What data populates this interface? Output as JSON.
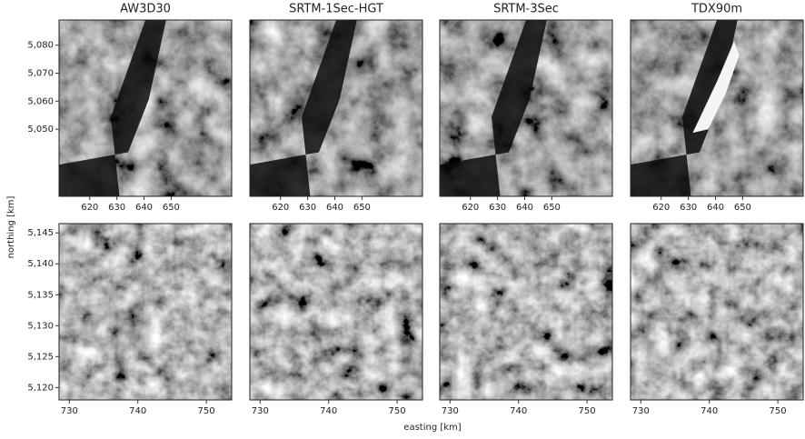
{
  "figure": {
    "xlabel": "easting [km]",
    "ylabel": "northing [km]"
  },
  "chart_data": [
    {
      "type": "image",
      "title": "AW3D30",
      "xlim": [
        608.7,
        672.3
      ],
      "xticks": [
        620,
        630,
        640,
        650
      ],
      "ylim": [
        5026,
        5089
      ],
      "yticks": [
        {
          "value": 5050,
          "label": "5,050"
        },
        {
          "value": 5060,
          "label": "5,060"
        },
        {
          "value": 5070,
          "label": "5,070"
        },
        {
          "value": 5080,
          "label": "5,080"
        }
      ]
    },
    {
      "type": "image",
      "title": "SRTM-1Sec-HGT",
      "xlim": [
        608.7,
        672.3
      ],
      "xticks": [
        620,
        630,
        640,
        650
      ]
    },
    {
      "type": "image",
      "title": "SRTM-3Sec",
      "xlim": [
        608.7,
        672.3
      ],
      "xticks": [
        620,
        630,
        640,
        650
      ]
    },
    {
      "type": "image",
      "title": "TDX90m",
      "xlim": [
        608.7,
        672.3
      ],
      "xticks": [
        620,
        630,
        640,
        650
      ]
    },
    {
      "type": "image",
      "xlim": [
        728.5,
        753.7
      ],
      "xticks": [
        730,
        740,
        750
      ],
      "ylim": [
        5118,
        5146.5
      ],
      "yticks": [
        {
          "value": 5120,
          "label": "5,120"
        },
        {
          "value": 5125,
          "label": "5,125"
        },
        {
          "value": 5130,
          "label": "5,130"
        },
        {
          "value": 5135,
          "label": "5,135"
        },
        {
          "value": 5140,
          "label": "5,140"
        },
        {
          "value": 5145,
          "label": "5,145"
        }
      ]
    },
    {
      "type": "image",
      "xlim": [
        728.5,
        753.7
      ],
      "xticks": [
        730,
        740,
        750
      ]
    },
    {
      "type": "image",
      "xlim": [
        728.5,
        753.7
      ],
      "xticks": [
        730,
        740,
        750
      ]
    },
    {
      "type": "image",
      "xlim": [
        728.5,
        753.7
      ],
      "xticks": [
        730,
        740,
        750
      ]
    }
  ]
}
